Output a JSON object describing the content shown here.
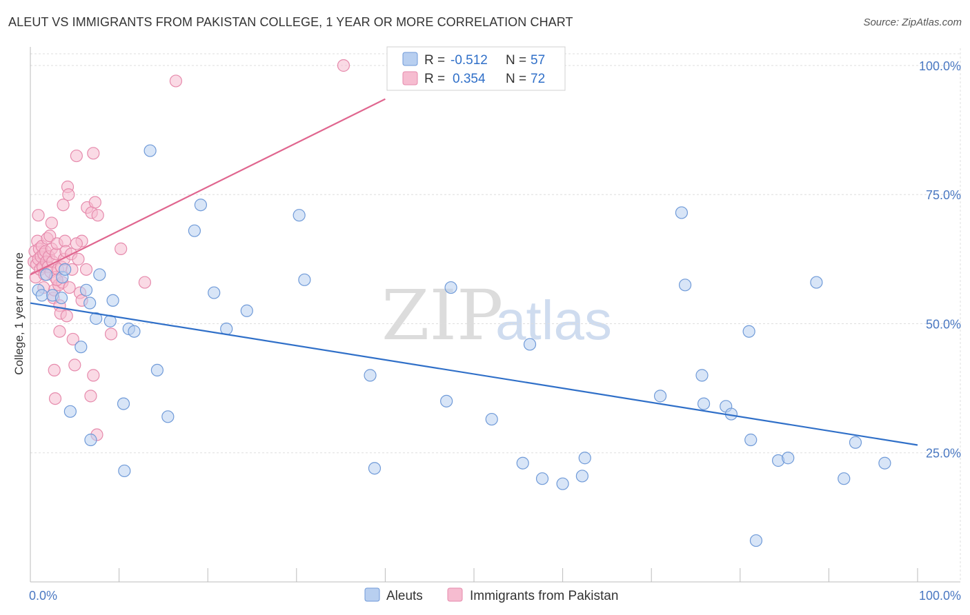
{
  "title": "ALEUT VS IMMIGRANTS FROM PAKISTAN COLLEGE, 1 YEAR OR MORE CORRELATION CHART",
  "source": "Source: ZipAtlas.com",
  "watermark": {
    "part1": "ZIP",
    "part2": "atlas"
  },
  "colors": {
    "aleut_fill": "#b8cff0",
    "aleut_stroke": "#6f9ad8",
    "aleut_line": "#2f6fc8",
    "pak_fill": "#f6bcd0",
    "pak_stroke": "#e68aac",
    "pak_line": "#e0668f",
    "grid": "#dddddd",
    "axis": "#bbbbbb"
  },
  "legend": {
    "rows": [
      {
        "r_label": "R =",
        "r_value": "-0.512",
        "n_label": "N =",
        "n_value": "57"
      },
      {
        "r_label": "R =",
        "r_value": "0.354",
        "n_label": "N =",
        "n_value": "72"
      }
    ]
  },
  "bottom_legend": {
    "aleut": "Aleuts",
    "pakistan": "Immigrants from Pakistan"
  },
  "chart_data": {
    "type": "scatter",
    "title": "ALEUT VS IMMIGRANTS FROM PAKISTAN COLLEGE, 1 YEAR OR MORE CORRELATION CHART",
    "xlabel": "",
    "ylabel": "College, 1 year or more",
    "xlim": [
      0,
      100
    ],
    "ylim": [
      0,
      102
    ],
    "x_tick_labels": [
      "0.0%",
      "100.0%"
    ],
    "y_ticks": [
      25,
      50,
      75,
      100
    ],
    "y_tick_labels": [
      "25.0%",
      "50.0%",
      "75.0%",
      "100.0%"
    ],
    "grid": true,
    "legend_position": "top-center",
    "series": [
      {
        "name": "Aleuts",
        "R": -0.512,
        "N": 57,
        "trend": {
          "x": [
            0,
            100
          ],
          "y": [
            54.0,
            26.5
          ]
        },
        "points": [
          [
            0.9,
            56.5
          ],
          [
            1.3,
            55.5
          ],
          [
            1.8,
            59.5
          ],
          [
            2.5,
            55.5
          ],
          [
            3.5,
            55.0
          ],
          [
            3.6,
            59.0
          ],
          [
            3.9,
            60.5
          ],
          [
            4.5,
            33.0
          ],
          [
            5.7,
            45.5
          ],
          [
            6.3,
            56.5
          ],
          [
            6.7,
            54.0
          ],
          [
            6.8,
            27.5
          ],
          [
            7.4,
            51.0
          ],
          [
            7.8,
            59.5
          ],
          [
            9.0,
            50.5
          ],
          [
            9.3,
            54.5
          ],
          [
            10.5,
            34.5
          ],
          [
            10.6,
            21.5
          ],
          [
            11.1,
            49.0
          ],
          [
            11.7,
            48.5
          ],
          [
            13.5,
            83.5
          ],
          [
            14.3,
            41.0
          ],
          [
            15.5,
            32.0
          ],
          [
            18.5,
            68.0
          ],
          [
            19.2,
            73.0
          ],
          [
            20.7,
            56.0
          ],
          [
            22.1,
            49.0
          ],
          [
            24.4,
            52.5
          ],
          [
            30.3,
            71.0
          ],
          [
            30.9,
            58.5
          ],
          [
            38.3,
            40.0
          ],
          [
            38.8,
            22.0
          ],
          [
            46.9,
            35.0
          ],
          [
            47.4,
            57.0
          ],
          [
            52.0,
            31.5
          ],
          [
            55.5,
            23.0
          ],
          [
            56.3,
            46.0
          ],
          [
            57.7,
            20.0
          ],
          [
            60.0,
            19.0
          ],
          [
            62.2,
            20.5
          ],
          [
            62.5,
            24.0
          ],
          [
            71.0,
            36.0
          ],
          [
            73.4,
            71.5
          ],
          [
            73.8,
            57.5
          ],
          [
            75.7,
            40.0
          ],
          [
            75.9,
            34.5
          ],
          [
            78.4,
            34.0
          ],
          [
            79.0,
            32.5
          ],
          [
            81.0,
            48.5
          ],
          [
            81.2,
            27.5
          ],
          [
            81.8,
            8.0
          ],
          [
            84.3,
            23.5
          ],
          [
            85.4,
            24.0
          ],
          [
            88.6,
            58.0
          ],
          [
            91.7,
            20.0
          ],
          [
            96.3,
            23.0
          ],
          [
            93.0,
            27.0
          ]
        ]
      },
      {
        "name": "Immigrants from Pakistan",
        "R": 0.354,
        "N": 72,
        "trend": {
          "x": [
            0,
            40
          ],
          "y": [
            59.5,
            93.5
          ]
        },
        "points": [
          [
            0.4,
            62.0
          ],
          [
            0.5,
            64.0
          ],
          [
            0.6,
            59.0
          ],
          [
            0.7,
            61.5
          ],
          [
            0.8,
            66.0
          ],
          [
            0.9,
            62.5
          ],
          [
            0.9,
            71.0
          ],
          [
            1.0,
            64.5
          ],
          [
            1.1,
            60.5
          ],
          [
            1.2,
            63.0
          ],
          [
            1.3,
            65.0
          ],
          [
            1.4,
            61.0
          ],
          [
            1.5,
            63.5
          ],
          [
            1.6,
            59.5
          ],
          [
            1.7,
            64.0
          ],
          [
            1.8,
            62.0
          ],
          [
            1.9,
            66.5
          ],
          [
            2.0,
            61.0
          ],
          [
            2.1,
            63.0
          ],
          [
            2.2,
            67.0
          ],
          [
            2.3,
            60.0
          ],
          [
            2.4,
            64.5
          ],
          [
            2.5,
            62.0
          ],
          [
            2.6,
            55.0
          ],
          [
            2.7,
            56.5
          ],
          [
            2.8,
            59.0
          ],
          [
            2.9,
            63.5
          ],
          [
            3.0,
            65.5
          ],
          [
            3.1,
            60.5
          ],
          [
            3.2,
            57.5
          ],
          [
            3.3,
            53.5
          ],
          [
            3.4,
            52.0
          ],
          [
            3.5,
            61.0
          ],
          [
            3.6,
            58.0
          ],
          [
            3.7,
            73.0
          ],
          [
            3.8,
            62.5
          ],
          [
            3.9,
            66.0
          ],
          [
            4.0,
            64.0
          ],
          [
            4.1,
            51.5
          ],
          [
            4.2,
            76.5
          ],
          [
            4.3,
            75.0
          ],
          [
            4.4,
            57.0
          ],
          [
            4.6,
            63.5
          ],
          [
            4.7,
            60.5
          ],
          [
            4.8,
            47.0
          ],
          [
            5.0,
            42.0
          ],
          [
            5.2,
            82.5
          ],
          [
            5.4,
            62.5
          ],
          [
            5.6,
            56.0
          ],
          [
            5.8,
            54.5
          ],
          [
            5.8,
            66.0
          ],
          [
            6.3,
            60.5
          ],
          [
            6.4,
            72.5
          ],
          [
            6.8,
            36.0
          ],
          [
            6.9,
            71.5
          ],
          [
            7.1,
            40.0
          ],
          [
            7.1,
            83.0
          ],
          [
            7.3,
            73.5
          ],
          [
            7.5,
            28.5
          ],
          [
            7.6,
            71.0
          ],
          [
            9.1,
            48.0
          ],
          [
            10.2,
            64.5
          ],
          [
            12.9,
            58.0
          ],
          [
            16.4,
            97.0
          ],
          [
            2.7,
            41.0
          ],
          [
            3.3,
            48.5
          ],
          [
            2.4,
            69.5
          ],
          [
            2.8,
            35.5
          ],
          [
            1.5,
            57.0
          ],
          [
            3.0,
            58.5
          ],
          [
            5.2,
            65.5
          ],
          [
            35.3,
            100.0
          ]
        ]
      }
    ]
  }
}
